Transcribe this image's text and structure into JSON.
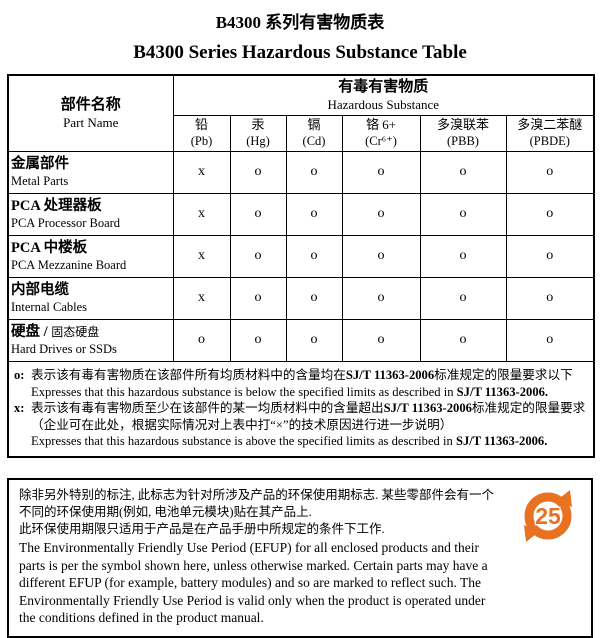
{
  "title_zh": "B4300 系列有害物质表",
  "title_en": "B4300 Series Hazardous Substance Table",
  "table": {
    "part_name_zh": "部件名称",
    "part_name_en": "Part Name",
    "hazard_header_zh": "有毒有害物质",
    "hazard_header_en": "Hazardous Substance",
    "substances": [
      {
        "key": "pb",
        "zh": "铅",
        "en": "(Pb)"
      },
      {
        "key": "hg",
        "zh": "汞",
        "en": "(Hg)"
      },
      {
        "key": "cd",
        "zh": "镉",
        "en": "(Cd)"
      },
      {
        "key": "cr6",
        "zh": "铬 6+",
        "en": "(Cr⁶⁺)"
      },
      {
        "key": "pbb",
        "zh": "多溴联苯",
        "en": "(PBB)"
      },
      {
        "key": "pbde",
        "zh": "多溴二苯醚",
        "en": "(PBDE)"
      }
    ],
    "rows": [
      {
        "zh": "金属部件",
        "en": "Metal Parts",
        "values": [
          "x",
          "o",
          "o",
          "o",
          "o",
          "o"
        ]
      },
      {
        "zh": "PCA 处理器板",
        "en": "PCA Processor Board",
        "values": [
          "x",
          "o",
          "o",
          "o",
          "o",
          "o"
        ]
      },
      {
        "zh": "PCA 中楼板",
        "en": "PCA Mezzanine Board",
        "values": [
          "x",
          "o",
          "o",
          "o",
          "o",
          "o"
        ]
      },
      {
        "zh": "内部电缆",
        "en": "Internal Cables",
        "values": [
          "x",
          "o",
          "o",
          "o",
          "o",
          "o"
        ]
      },
      {
        "zh": "硬盘 / ",
        "zh_small": "固态硬盘",
        "en": "Hard Drives or SSDs",
        "values": [
          "o",
          "o",
          "o",
          "o",
          "o",
          "o"
        ]
      }
    ]
  },
  "footnotes": {
    "o_marker": "o:",
    "o_zh_pre": "表示该有毒有害物质在该部件所有均质材料中的含量均在",
    "o_zh_bold": "SJ/T 11363-2006",
    "o_zh_post": "标准规定的限量要求以下",
    "o_en_pre": "Expresses that this hazardous substance is below the specified limits as described in ",
    "o_en_bold": "SJ/T 11363-2006.",
    "x_marker": "x:",
    "x_zh_pre": "表示该有毒有害物质至少在该部件的某一均质材料中的含量超出",
    "x_zh_bold": "SJ/T 11363-2006",
    "x_zh_post": "标准规定的限量要求",
    "x_zh_note": "（企业可在此处，根据实际情况对上表中打“×”的技术原因进行进一步说明）",
    "x_en_pre": "Expresses that this hazardous substance is above the specified limits as described in ",
    "x_en_bold": "SJ/T 11363-2006."
  },
  "efup": {
    "zh_line1": "除非另外特别的标注, 此标志为针对所涉及产品的环保使用期标志.  某些零部件会有一个",
    "zh_line2": "不同的环保使用期(例如, 电池单元模块)贴在其产品上.",
    "zh_line3": "此环保使用期限只适用于产品是在产品手册中所规定的条件下工作.",
    "en_text": "The Environmentally Friendly Use Period (EFUP) for all enclosed products and their parts is per the symbol shown here, unless otherwise marked.  Certain parts may have a different EFUP (for example, battery modules) and so are marked to reflect such.  The Environmentally Friendly Use Period is valid only when the product is operated under the conditions defined in the product manual.",
    "icon_value": "25",
    "icon_color": "#e87222"
  }
}
